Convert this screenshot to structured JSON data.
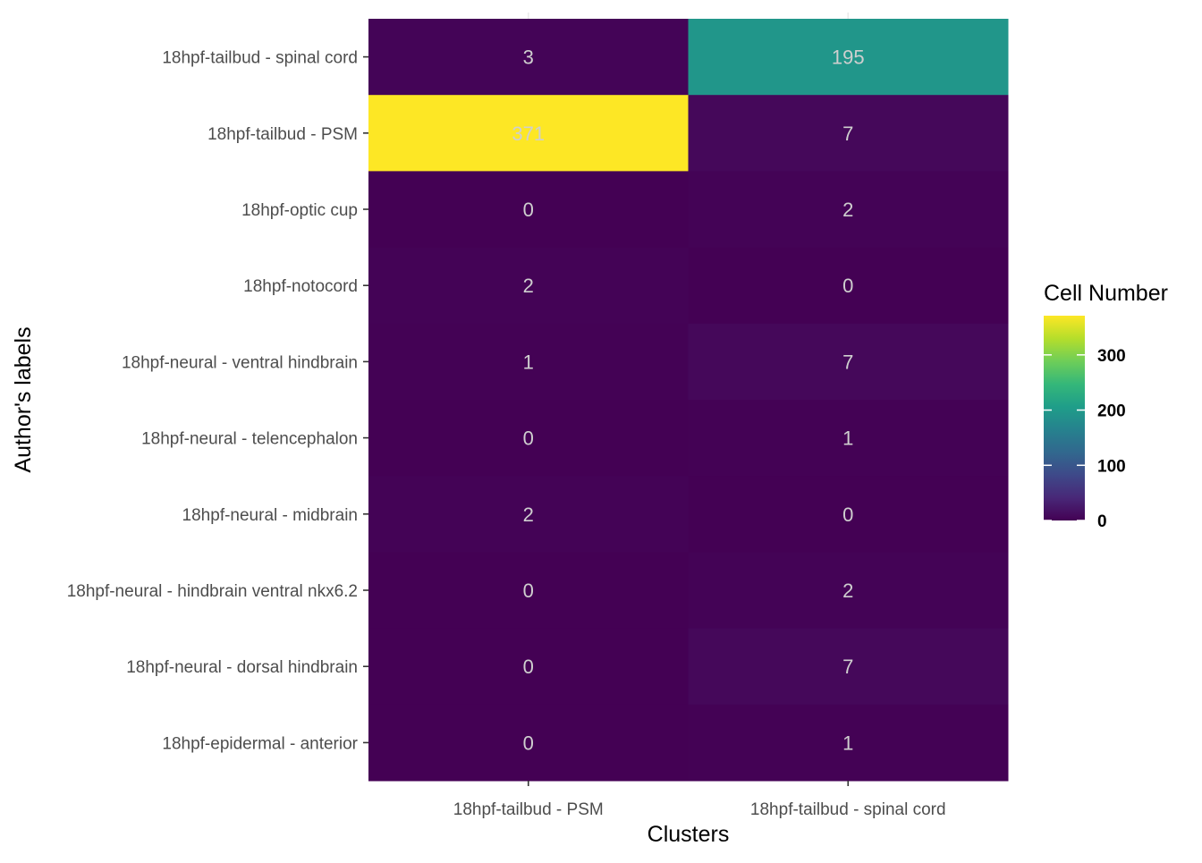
{
  "chart_data": {
    "type": "heatmap",
    "xlabel": "Clusters",
    "ylabel": "Author's labels",
    "x_categories": [
      "18hpf-tailbud - PSM",
      "18hpf-tailbud - spinal cord"
    ],
    "y_categories": [
      "18hpf-tailbud - spinal cord",
      "18hpf-tailbud - PSM",
      "18hpf-optic cup",
      "18hpf-notocord",
      "18hpf-neural - ventral hindbrain",
      "18hpf-neural - telencephalon",
      "18hpf-neural - midbrain",
      "18hpf-neural - hindbrain ventral nkx6.2",
      "18hpf-neural - dorsal hindbrain",
      "18hpf-epidermal - anterior"
    ],
    "values": [
      [
        3,
        195
      ],
      [
        371,
        7
      ],
      [
        0,
        2
      ],
      [
        2,
        0
      ],
      [
        1,
        7
      ],
      [
        0,
        1
      ],
      [
        2,
        0
      ],
      [
        0,
        2
      ],
      [
        0,
        7
      ],
      [
        0,
        1
      ]
    ],
    "colorscale": "viridis",
    "colorbar": {
      "title": "Cell Number",
      "min": 0,
      "max": 371,
      "ticks": [
        0,
        100,
        200,
        300
      ]
    },
    "legend_position": "right",
    "grid": true
  }
}
